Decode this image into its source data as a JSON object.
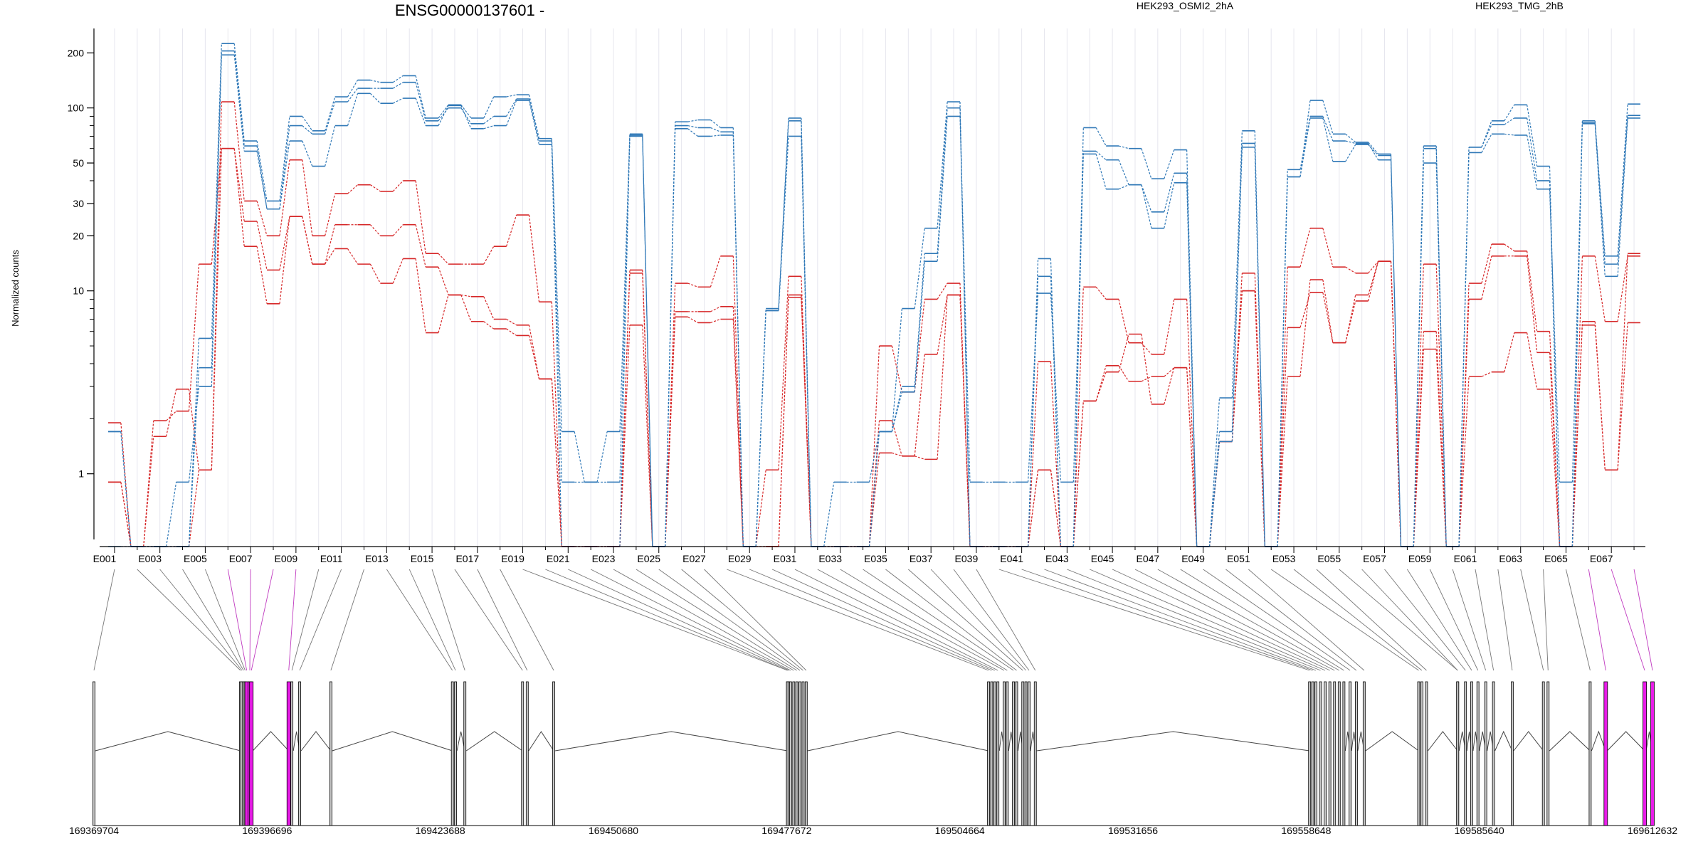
{
  "title": "ENSG00000137601 -",
  "ylabel": "Normalized counts",
  "colors": {
    "osmi": "#d62728",
    "tmg": "#2f78b7",
    "highlight": "#e81ce8",
    "gray_exon": "#c8c8c8",
    "connector_gray": "#777777",
    "connector_magenta": "#c03ac0"
  },
  "legend": [
    {
      "label": "HEK293_OSMI2_2hA",
      "color": "#d62728"
    },
    {
      "label": "HEK293_TMG_2hB",
      "color": "#2f78b7"
    }
  ],
  "chart_data": {
    "type": "line",
    "title": "ENSG00000137601 -",
    "xlabel": "",
    "ylabel": "Normalized counts",
    "yscale": "log",
    "ylim": [
      0.4,
      260
    ],
    "yticks": [
      1,
      10,
      20,
      30,
      50,
      100,
      200
    ],
    "grid": "vertical",
    "legend_position": "top",
    "exons": [
      "E001",
      "E002",
      "E003",
      "E004",
      "E005",
      "E006",
      "E007",
      "E008",
      "E009",
      "E010",
      "E011",
      "E012",
      "E013",
      "E014",
      "E015",
      "E016",
      "E017",
      "E018",
      "E019",
      "E020",
      "E021",
      "E022",
      "E023",
      "E024",
      "E025",
      "E026",
      "E027",
      "E028",
      "E029",
      "E030",
      "E031",
      "E032",
      "E033",
      "E034",
      "E035",
      "E036",
      "E037",
      "E038",
      "E039",
      "E040",
      "E041",
      "E042",
      "E043",
      "E044",
      "E045",
      "E046",
      "E047",
      "E048",
      "E049",
      "E050",
      "E051",
      "E052",
      "E053",
      "E054",
      "E055",
      "E056",
      "E057",
      "E058",
      "E059",
      "E060",
      "E061",
      "E062",
      "E063",
      "E064",
      "E065",
      "E066",
      "E067",
      "E068"
    ],
    "exon_tick_labels": [
      "E001",
      "E003",
      "E005",
      "E007",
      "E009",
      "E011",
      "E013",
      "E015",
      "E017",
      "E019",
      "E021",
      "E023",
      "E025",
      "E027",
      "E029",
      "E031",
      "E033",
      "E035",
      "E037",
      "E039",
      "E041",
      "E043",
      "E045",
      "E047",
      "E049",
      "E051",
      "E053",
      "E055",
      "E057",
      "E059",
      "E061",
      "E063",
      "E065",
      "E067"
    ],
    "series": [
      {
        "name": "HEK293_OSMI2_2hA",
        "color": "#d62728",
        "values": [
          1.9,
          0.4,
          1.6,
          2.9,
          1.05,
          108,
          31,
          20,
          52,
          20,
          34,
          38,
          35,
          40,
          16,
          14,
          14,
          17.5,
          26,
          8.7,
          0.4,
          0.4,
          0.4,
          13,
          0.4,
          11,
          10.5,
          15.5,
          0.4,
          1.05,
          12,
          0.4,
          0.4,
          0.4,
          5,
          2.8,
          9,
          11,
          0.4,
          0.4,
          0.4,
          4.1,
          0.4,
          10.5,
          9,
          5.2,
          4.5,
          9,
          0.4,
          1.5,
          12.5,
          0.4,
          13.5,
          22,
          13.5,
          12.5,
          14.5,
          0.4,
          14,
          0.4,
          11,
          18,
          16.5,
          6,
          0.4,
          15.5,
          6.8,
          15.5
        ]
      },
      {
        "name": "HEK293_OSMI2_2hA",
        "color": "#d62728",
        "values": [
          0.9,
          0.4,
          1.95,
          2.2,
          14,
          60,
          24,
          13,
          25.5,
          14,
          23,
          23,
          20,
          23,
          13.5,
          9.5,
          9.3,
          7,
          6.5,
          3.3,
          0.4,
          0.4,
          0.4,
          12.5,
          0.4,
          7.7,
          7.7,
          8.2,
          0.4,
          0.4,
          9.5,
          0.4,
          0.4,
          0.4,
          1.95,
          1.25,
          4.5,
          9.5,
          0.4,
          0.4,
          0.4,
          1.05,
          0.4,
          2.5,
          3.9,
          3.2,
          3.4,
          3.8,
          0.4,
          1.5,
          10,
          0.4,
          6.3,
          9.8,
          5.2,
          9.5,
          14.5,
          0.4,
          6,
          0.4,
          9,
          15.5,
          15.5,
          4.6,
          0.4,
          6.8,
          1.05,
          16
        ]
      },
      {
        "name": "HEK293_OSMI2_2hA",
        "color": "#d62728",
        "values": [
          0.9,
          0.4,
          0.4,
          0.4,
          1.05,
          60,
          17.5,
          8.5,
          25.5,
          14,
          17,
          14,
          11,
          15,
          5.9,
          9.5,
          6.8,
          6.2,
          5.7,
          3.3,
          0.4,
          0.4,
          0.4,
          6.5,
          0.4,
          7.2,
          6.7,
          7,
          0.4,
          0.4,
          9.2,
          0.4,
          0.4,
          0.4,
          1.3,
          1.25,
          1.2,
          9.5,
          0.4,
          0.4,
          0.4,
          1.05,
          0.4,
          2.5,
          3.6,
          5.8,
          2.4,
          3.8,
          0.4,
          1.5,
          10,
          0.4,
          3.4,
          11.5,
          5.2,
          8.8,
          14.5,
          0.4,
          4.8,
          0.4,
          3.4,
          3.6,
          5.9,
          2.9,
          0.4,
          6.5,
          1.05,
          6.7
        ]
      },
      {
        "name": "HEK293_TMG_2hB",
        "color": "#2f78b7",
        "values": [
          1.7,
          0.4,
          0.4,
          0.4,
          5.5,
          225,
          66,
          31,
          90,
          75,
          115,
          142,
          138,
          150,
          88,
          104,
          88,
          115,
          118,
          68,
          1.7,
          0.9,
          1.7,
          72,
          0.4,
          84,
          86,
          78,
          0.4,
          8,
          88,
          0.4,
          0.4,
          0.4,
          1.7,
          8,
          22,
          108,
          0.4,
          0.4,
          0.4,
          15,
          0.4,
          78,
          62,
          60,
          41,
          59,
          0.4,
          2.6,
          75,
          0.4,
          42,
          110,
          72,
          65,
          56,
          0.4,
          62,
          0.4,
          61,
          85,
          104,
          48,
          0.4,
          85,
          15.5,
          105
        ]
      },
      {
        "name": "HEK293_TMG_2hB",
        "color": "#2f78b7",
        "values": [
          1.7,
          0.4,
          0.4,
          0.4,
          3.8,
          205,
          62,
          28,
          80,
          72,
          108,
          128,
          128,
          138,
          85,
          100,
          82,
          90,
          112,
          66,
          0.9,
          0.9,
          0.9,
          70,
          0.4,
          80,
          78,
          74,
          0.4,
          7.8,
          85,
          0.4,
          0.4,
          0.4,
          1.7,
          3,
          16,
          100,
          0.4,
          0.4,
          0.4,
          12,
          0.4,
          58,
          52,
          38,
          27,
          44,
          0.4,
          1.7,
          64,
          0.4,
          46,
          90,
          66,
          64,
          52,
          0.4,
          60,
          0.4,
          61,
          81,
          88,
          40,
          0.4,
          83,
          14,
          91
        ]
      },
      {
        "name": "HEK293_TMG_2hB",
        "color": "#2f78b7",
        "values": [
          0.4,
          0.4,
          0.4,
          0.9,
          3.0,
          195,
          58,
          28,
          66,
          48,
          80,
          120,
          106,
          113,
          80,
          103,
          77,
          80,
          110,
          63,
          0.4,
          0.4,
          0.4,
          71,
          0.4,
          77,
          70,
          71,
          0.4,
          7.8,
          70,
          0.4,
          0.9,
          0.9,
          1.7,
          2.8,
          14.5,
          90,
          0.9,
          0.9,
          0.9,
          9.7,
          0.9,
          56,
          36,
          38,
          22,
          39,
          0.4,
          1.5,
          61,
          0.4,
          42,
          88,
          51,
          63,
          55,
          0.4,
          50,
          0.4,
          57,
          72,
          71,
          36,
          0.9,
          82,
          12,
          88
        ]
      }
    ],
    "genomic_axis": {
      "ticks": [
        "169369704",
        "169396696",
        "169423688",
        "169450680",
        "169477672",
        "169504664",
        "169531656",
        "169558648",
        "169585640",
        "169612632"
      ],
      "start": 169369704,
      "end": 169612632
    },
    "exon_highlight": [
      "E005",
      "E006",
      "E007",
      "E008",
      "E066",
      "E067",
      "E068"
    ]
  }
}
